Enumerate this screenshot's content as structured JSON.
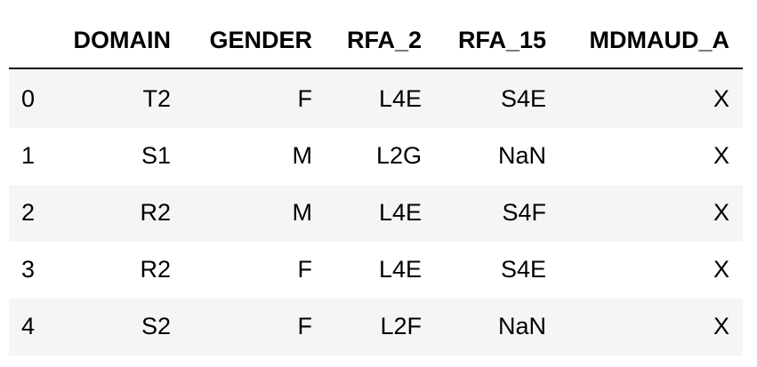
{
  "table": {
    "columns": [
      "DOMAIN",
      "GENDER",
      "RFA_2",
      "RFA_15",
      "MDMAUD_A"
    ],
    "index": [
      0,
      1,
      2,
      3,
      4
    ],
    "rows": [
      [
        "T2",
        "F",
        "L4E",
        "S4E",
        "X"
      ],
      [
        "S1",
        "M",
        "L2G",
        "NaN",
        "X"
      ],
      [
        "R2",
        "M",
        "L4E",
        "S4F",
        "X"
      ],
      [
        "R2",
        "F",
        "L4E",
        "S4E",
        "X"
      ],
      [
        "S2",
        "F",
        "L2F",
        "NaN",
        "X"
      ]
    ]
  }
}
